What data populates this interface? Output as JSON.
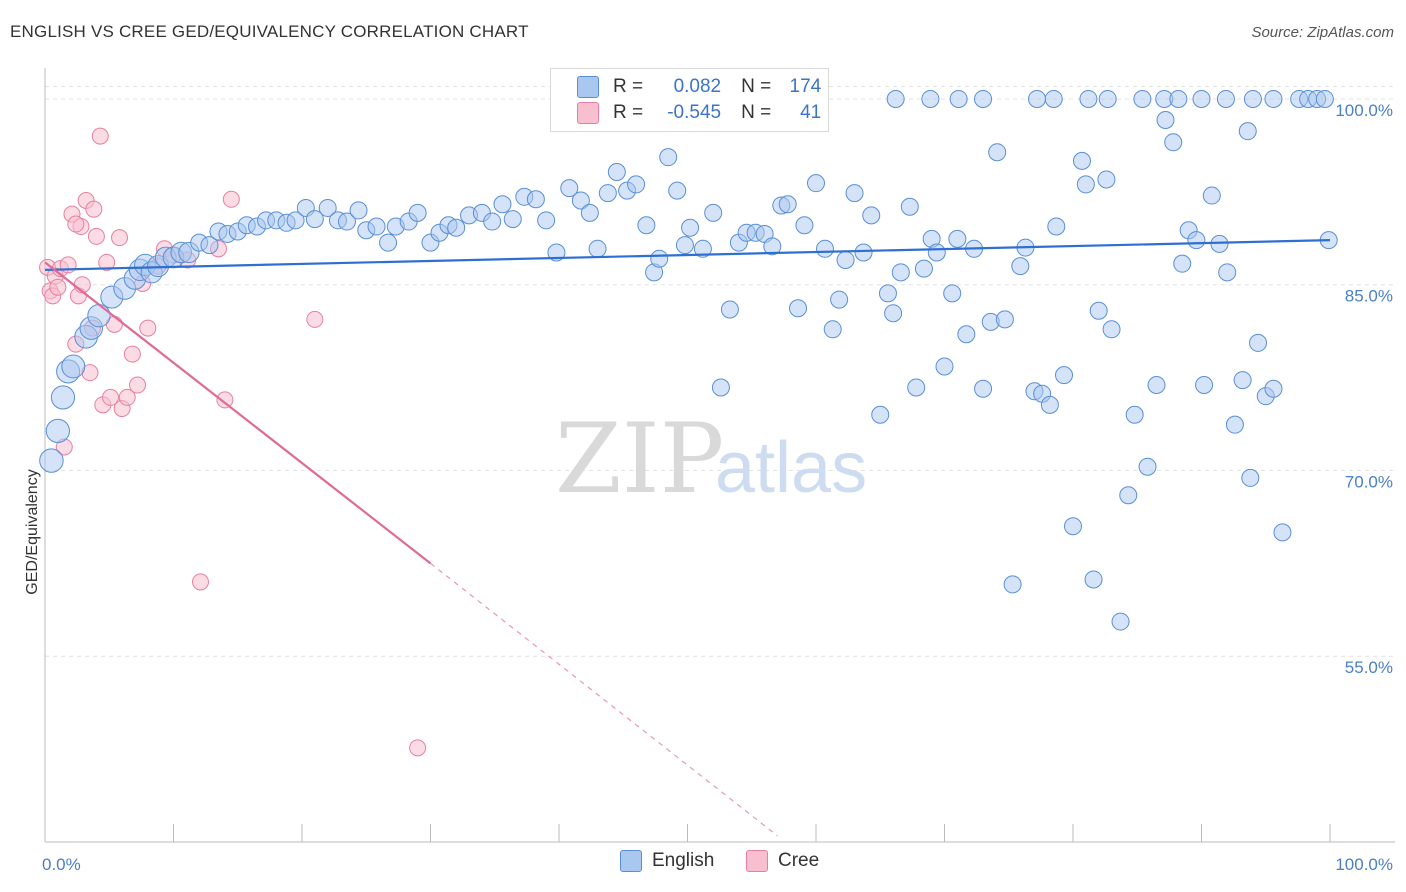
{
  "header": {
    "title": "ENGLISH VS CREE GED/EQUIVALENCY CORRELATION CHART",
    "source": "Source: ZipAtlas.com"
  },
  "watermark": {
    "zip": "ZIP",
    "atlas": "atlas"
  },
  "legend": {
    "rows": [
      {
        "r_label": "R =",
        "r_value": "0.082",
        "n_label": "N =",
        "n_value": "174",
        "color": "#a9c8f0",
        "border": "#5a8fd6"
      },
      {
        "r_label": "R =",
        "r_value": "-0.545",
        "n_label": "N =",
        "n_value": "41",
        "color": "#f7bfd0",
        "border": "#e87fa3"
      }
    ]
  },
  "bottom_legend": {
    "english": "English",
    "cree": "Cree"
  },
  "chart_data": {
    "type": "scatter",
    "ylabel": "GED/Equivalency",
    "xlim": [
      0,
      100
    ],
    "ylim": [
      40,
      102.5
    ],
    "x_tick_labels": [
      "0.0%",
      "100.0%"
    ],
    "y_ticks": [
      {
        "value": 100,
        "label": "100.0%"
      },
      {
        "value": 85,
        "label": "85.0%"
      },
      {
        "value": 70,
        "label": "70.0%"
      },
      {
        "value": 55,
        "label": "55.0%"
      }
    ],
    "grid": true,
    "colors": {
      "english": "#5a8fd6",
      "english_fill": "#a9c8f0",
      "cree": "#e87fa3",
      "cree_fill": "#f7bfd0",
      "english_line": "#2f6fd0",
      "cree_line": "#e06a96"
    },
    "series": [
      {
        "name": "English",
        "trend": {
          "x0": 0,
          "y0": 86.2,
          "x1": 100,
          "y1": 88.6
        },
        "points": [
          [
            0.5,
            70.8
          ],
          [
            1.0,
            73.2
          ],
          [
            1.4,
            75.9
          ],
          [
            1.8,
            78.0
          ],
          [
            2.2,
            78.4
          ],
          [
            3.2,
            80.8
          ],
          [
            3.6,
            81.5
          ],
          [
            4.2,
            82.5
          ],
          [
            5.2,
            84.0
          ],
          [
            6.2,
            84.7
          ],
          [
            7.0,
            85.5
          ],
          [
            7.4,
            86.2
          ],
          [
            7.8,
            86.6
          ],
          [
            8.3,
            86.0
          ],
          [
            8.8,
            86.5
          ],
          [
            9.4,
            87.2
          ],
          [
            10.0,
            87.2
          ],
          [
            10.6,
            87.6
          ],
          [
            11.2,
            87.6
          ],
          [
            12.0,
            88.4
          ],
          [
            12.8,
            88.2
          ],
          [
            13.5,
            89.3
          ],
          [
            14.2,
            89.1
          ],
          [
            15.0,
            89.3
          ],
          [
            15.7,
            89.8
          ],
          [
            16.5,
            89.7
          ],
          [
            17.2,
            90.2
          ],
          [
            18.0,
            90.2
          ],
          [
            18.8,
            90.0
          ],
          [
            19.5,
            90.2
          ],
          [
            20.3,
            91.2
          ],
          [
            21.0,
            90.3
          ],
          [
            22.0,
            91.2
          ],
          [
            22.8,
            90.2
          ],
          [
            23.5,
            90.1
          ],
          [
            24.4,
            91.0
          ],
          [
            25.0,
            89.4
          ],
          [
            25.8,
            89.7
          ],
          [
            26.7,
            88.4
          ],
          [
            27.3,
            89.7
          ],
          [
            28.3,
            90.1
          ],
          [
            29.0,
            90.8
          ],
          [
            30.0,
            88.4
          ],
          [
            30.7,
            89.2
          ],
          [
            31.4,
            89.8
          ],
          [
            32.0,
            89.6
          ],
          [
            33.0,
            90.6
          ],
          [
            34.0,
            90.8
          ],
          [
            34.8,
            90.1
          ],
          [
            35.6,
            91.5
          ],
          [
            36.4,
            90.3
          ],
          [
            37.3,
            92.1
          ],
          [
            38.2,
            91.9
          ],
          [
            39.0,
            90.2
          ],
          [
            39.8,
            87.6
          ],
          [
            40.8,
            92.8
          ],
          [
            41.7,
            91.8
          ],
          [
            42.4,
            90.8
          ],
          [
            43.0,
            87.9
          ],
          [
            43.8,
            92.4
          ],
          [
            44.5,
            94.1
          ],
          [
            45.3,
            92.6
          ],
          [
            46.0,
            93.1
          ],
          [
            46.8,
            89.8
          ],
          [
            47.4,
            86.0
          ],
          [
            47.8,
            87.1
          ],
          [
            48.5,
            95.3
          ],
          [
            49.2,
            92.6
          ],
          [
            49.8,
            88.2
          ],
          [
            50.2,
            89.6
          ],
          [
            51.2,
            87.9
          ],
          [
            52.0,
            90.8
          ],
          [
            52.6,
            76.7
          ],
          [
            53.3,
            83.0
          ],
          [
            54.0,
            88.4
          ],
          [
            54.6,
            89.2
          ],
          [
            55.3,
            89.2
          ],
          [
            56.0,
            89.1
          ],
          [
            56.6,
            88.1
          ],
          [
            57.3,
            91.4
          ],
          [
            57.8,
            91.5
          ],
          [
            58.6,
            83.1
          ],
          [
            59.1,
            89.8
          ],
          [
            60.0,
            93.2
          ],
          [
            60.7,
            87.9
          ],
          [
            61.3,
            81.4
          ],
          [
            61.8,
            83.8
          ],
          [
            62.3,
            87.0
          ],
          [
            63.0,
            92.4
          ],
          [
            63.7,
            87.6
          ],
          [
            64.3,
            90.6
          ],
          [
            65.0,
            74.5
          ],
          [
            65.6,
            84.3
          ],
          [
            66.0,
            82.7
          ],
          [
            66.6,
            86.0
          ],
          [
            67.3,
            91.3
          ],
          [
            67.8,
            76.7
          ],
          [
            68.4,
            86.3
          ],
          [
            69.0,
            88.7
          ],
          [
            69.4,
            87.6
          ],
          [
            70.0,
            78.4
          ],
          [
            70.6,
            84.3
          ],
          [
            71.0,
            88.7
          ],
          [
            71.7,
            81.0
          ],
          [
            72.3,
            87.9
          ],
          [
            73.0,
            76.6
          ],
          [
            73.6,
            82.0
          ],
          [
            74.1,
            95.7
          ],
          [
            74.7,
            82.2
          ],
          [
            75.3,
            60.8
          ],
          [
            75.9,
            86.5
          ],
          [
            76.3,
            88.0
          ],
          [
            77.0,
            76.4
          ],
          [
            77.6,
            76.2
          ],
          [
            78.2,
            75.3
          ],
          [
            78.7,
            89.7
          ],
          [
            79.3,
            77.7
          ],
          [
            80.0,
            65.5
          ],
          [
            80.7,
            95.0
          ],
          [
            81.0,
            93.1
          ],
          [
            81.6,
            61.2
          ],
          [
            82.0,
            82.9
          ],
          [
            82.6,
            93.5
          ],
          [
            83.0,
            81.4
          ],
          [
            83.7,
            57.8
          ],
          [
            84.3,
            68.0
          ],
          [
            84.8,
            74.5
          ],
          [
            85.8,
            70.3
          ],
          [
            86.5,
            76.9
          ],
          [
            87.2,
            98.3
          ],
          [
            87.8,
            96.5
          ],
          [
            88.5,
            86.7
          ],
          [
            89.0,
            89.4
          ],
          [
            89.6,
            88.6
          ],
          [
            90.2,
            76.9
          ],
          [
            90.8,
            92.2
          ],
          [
            91.4,
            88.3
          ],
          [
            92.0,
            86.0
          ],
          [
            92.6,
            73.7
          ],
          [
            93.2,
            77.3
          ],
          [
            93.8,
            69.4
          ],
          [
            94.4,
            80.3
          ],
          [
            95.0,
            76.0
          ],
          [
            95.6,
            76.6
          ],
          [
            96.3,
            65.0
          ],
          [
            66.2,
            100
          ],
          [
            68.9,
            100
          ],
          [
            71.1,
            100
          ],
          [
            73.0,
            100
          ],
          [
            77.2,
            100
          ],
          [
            78.5,
            100
          ],
          [
            81.2,
            100
          ],
          [
            82.7,
            100
          ],
          [
            85.4,
            100
          ],
          [
            87.1,
            100
          ],
          [
            88.2,
            100
          ],
          [
            90.0,
            100
          ],
          [
            91.9,
            100
          ],
          [
            94.0,
            100
          ],
          [
            95.6,
            100
          ],
          [
            97.6,
            100
          ],
          [
            98.3,
            100
          ],
          [
            99.0,
            100
          ],
          [
            99.6,
            100
          ],
          [
            93.6,
            97.4
          ],
          [
            99.9,
            88.6
          ]
        ]
      },
      {
        "name": "Cree",
        "trend": {
          "x0": 0,
          "y0": 86.8,
          "x1": 30.0,
          "y1": 62.5,
          "dash_x1": 57.0,
          "dash_y1": 40.5
        },
        "points": [
          [
            0.2,
            86.4
          ],
          [
            0.4,
            84.5
          ],
          [
            0.6,
            84.1
          ],
          [
            0.8,
            85.7
          ],
          [
            1.2,
            86.3
          ],
          [
            1.5,
            71.9
          ],
          [
            1.8,
            86.6
          ],
          [
            2.1,
            90.7
          ],
          [
            2.4,
            80.2
          ],
          [
            2.6,
            84.1
          ],
          [
            2.8,
            89.7
          ],
          [
            2.9,
            85.0
          ],
          [
            3.2,
            91.8
          ],
          [
            3.5,
            77.9
          ],
          [
            3.7,
            81.5
          ],
          [
            3.8,
            91.1
          ],
          [
            4.0,
            88.9
          ],
          [
            4.3,
            97.0
          ],
          [
            4.5,
            75.3
          ],
          [
            4.8,
            86.8
          ],
          [
            5.1,
            75.9
          ],
          [
            5.4,
            81.8
          ],
          [
            5.8,
            88.8
          ],
          [
            6.0,
            75.0
          ],
          [
            6.4,
            75.9
          ],
          [
            6.8,
            79.4
          ],
          [
            7.2,
            76.9
          ],
          [
            7.6,
            85.1
          ],
          [
            8.0,
            81.5
          ],
          [
            8.8,
            86.5
          ],
          [
            9.3,
            87.9
          ],
          [
            10.0,
            87.4
          ],
          [
            11.1,
            87.0
          ],
          [
            12.1,
            61.0
          ],
          [
            13.5,
            87.9
          ],
          [
            14.0,
            75.7
          ],
          [
            14.5,
            91.9
          ],
          [
            21.0,
            82.2
          ],
          [
            29.0,
            47.6
          ],
          [
            2.4,
            89.9
          ],
          [
            1.0,
            84.8
          ]
        ]
      }
    ]
  }
}
